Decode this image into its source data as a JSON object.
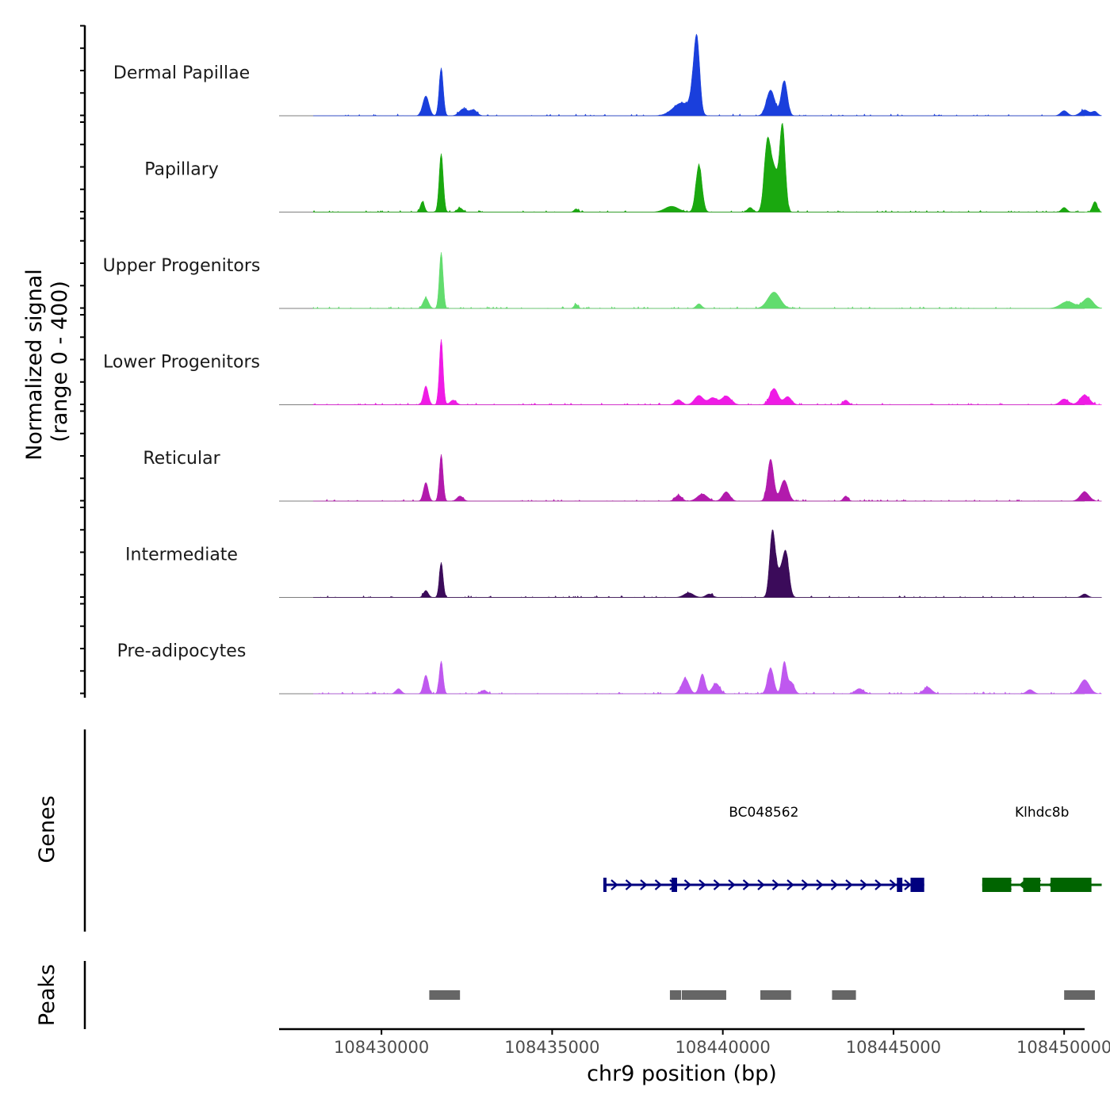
{
  "chart_data": {
    "type": "area",
    "chromosome": "chr9",
    "xlim": [
      108427000,
      108450600
    ],
    "ylim": [
      0,
      400
    ],
    "y_title_line1": "Normalized signal",
    "y_title_line2": "(range 0 - 400)",
    "xlabel": "chr9 position (bp)",
    "x_ticks": [
      108430000,
      108435000,
      108440000,
      108445000,
      108450000
    ],
    "x_tick_labels": [
      "108430000",
      "108435000",
      "108440000",
      "108445000",
      "108450000"
    ],
    "signal_start": 108428000,
    "signal_end": 108451100,
    "tracks": [
      {
        "name": "Dermal Papillae",
        "color": "#1a3fdc",
        "peaks": [
          {
            "pos": 108431300,
            "h": 85,
            "w": 90
          },
          {
            "pos": 108431750,
            "h": 205,
            "w": 60
          },
          {
            "pos": 108432400,
            "h": 30,
            "w": 120
          },
          {
            "pos": 108432700,
            "h": 25,
            "w": 100
          },
          {
            "pos": 108438800,
            "h": 55,
            "w": 260
          },
          {
            "pos": 108439250,
            "h": 270,
            "w": 80
          },
          {
            "pos": 108439150,
            "h": 110,
            "w": 90
          },
          {
            "pos": 108441400,
            "h": 110,
            "w": 120
          },
          {
            "pos": 108441800,
            "h": 150,
            "w": 90
          },
          {
            "pos": 108450000,
            "h": 22,
            "w": 100
          },
          {
            "pos": 108450600,
            "h": 25,
            "w": 130
          },
          {
            "pos": 108450900,
            "h": 18,
            "w": 80
          }
        ]
      },
      {
        "name": "Papillary",
        "color": "#1aa80f",
        "peaks": [
          {
            "pos": 108431200,
            "h": 45,
            "w": 60
          },
          {
            "pos": 108431750,
            "h": 250,
            "w": 60
          },
          {
            "pos": 108432300,
            "h": 18,
            "w": 80
          },
          {
            "pos": 108435700,
            "h": 14,
            "w": 60
          },
          {
            "pos": 108438500,
            "h": 25,
            "w": 200
          },
          {
            "pos": 108439300,
            "h": 200,
            "w": 90
          },
          {
            "pos": 108441300,
            "h": 270,
            "w": 90
          },
          {
            "pos": 108441750,
            "h": 360,
            "w": 80
          },
          {
            "pos": 108441500,
            "h": 180,
            "w": 120
          },
          {
            "pos": 108440800,
            "h": 20,
            "w": 80
          },
          {
            "pos": 108450000,
            "h": 20,
            "w": 80
          },
          {
            "pos": 108450900,
            "h": 45,
            "w": 70
          }
        ]
      },
      {
        "name": "Upper Progenitors",
        "color": "#62dc6e",
        "peaks": [
          {
            "pos": 108431300,
            "h": 45,
            "w": 80
          },
          {
            "pos": 108431750,
            "h": 240,
            "w": 55
          },
          {
            "pos": 108435700,
            "h": 18,
            "w": 60
          },
          {
            "pos": 108439300,
            "h": 20,
            "w": 80
          },
          {
            "pos": 108441500,
            "h": 70,
            "w": 180
          },
          {
            "pos": 108450100,
            "h": 30,
            "w": 200
          },
          {
            "pos": 108450700,
            "h": 45,
            "w": 150
          }
        ]
      },
      {
        "name": "Lower Progenitors",
        "color": "#ef1be5",
        "peaks": [
          {
            "pos": 108431300,
            "h": 80,
            "w": 70
          },
          {
            "pos": 108431750,
            "h": 280,
            "w": 55
          },
          {
            "pos": 108432100,
            "h": 20,
            "w": 90
          },
          {
            "pos": 108438700,
            "h": 22,
            "w": 100
          },
          {
            "pos": 108439300,
            "h": 40,
            "w": 130
          },
          {
            "pos": 108439700,
            "h": 30,
            "w": 120
          },
          {
            "pos": 108440100,
            "h": 38,
            "w": 140
          },
          {
            "pos": 108441500,
            "h": 70,
            "w": 120
          },
          {
            "pos": 108441900,
            "h": 35,
            "w": 110
          },
          {
            "pos": 108443600,
            "h": 20,
            "w": 80
          },
          {
            "pos": 108450000,
            "h": 25,
            "w": 120
          },
          {
            "pos": 108450600,
            "h": 42,
            "w": 140
          }
        ]
      },
      {
        "name": "Reticular",
        "color": "#b21aac",
        "peaks": [
          {
            "pos": 108431300,
            "h": 80,
            "w": 70
          },
          {
            "pos": 108431750,
            "h": 200,
            "w": 55
          },
          {
            "pos": 108432300,
            "h": 22,
            "w": 90
          },
          {
            "pos": 108438700,
            "h": 25,
            "w": 100
          },
          {
            "pos": 108439400,
            "h": 30,
            "w": 150
          },
          {
            "pos": 108440100,
            "h": 40,
            "w": 110
          },
          {
            "pos": 108441400,
            "h": 180,
            "w": 90
          },
          {
            "pos": 108441800,
            "h": 90,
            "w": 110
          },
          {
            "pos": 108443600,
            "h": 22,
            "w": 70
          },
          {
            "pos": 108450600,
            "h": 40,
            "w": 130
          }
        ]
      },
      {
        "name": "Intermediate",
        "color": "#3b0b5a",
        "peaks": [
          {
            "pos": 108431300,
            "h": 30,
            "w": 70
          },
          {
            "pos": 108431750,
            "h": 150,
            "w": 55
          },
          {
            "pos": 108439000,
            "h": 20,
            "w": 140
          },
          {
            "pos": 108439600,
            "h": 15,
            "w": 100
          },
          {
            "pos": 108441450,
            "h": 265,
            "w": 80
          },
          {
            "pos": 108441850,
            "h": 175,
            "w": 90
          },
          {
            "pos": 108441650,
            "h": 100,
            "w": 120
          },
          {
            "pos": 108450600,
            "h": 15,
            "w": 90
          }
        ]
      },
      {
        "name": "Pre-adipocytes",
        "color": "#bf58ef",
        "peaks": [
          {
            "pos": 108430500,
            "h": 22,
            "w": 80
          },
          {
            "pos": 108431300,
            "h": 80,
            "w": 70
          },
          {
            "pos": 108431750,
            "h": 140,
            "w": 55
          },
          {
            "pos": 108433000,
            "h": 15,
            "w": 90
          },
          {
            "pos": 108438900,
            "h": 65,
            "w": 110
          },
          {
            "pos": 108439400,
            "h": 85,
            "w": 80
          },
          {
            "pos": 108439800,
            "h": 45,
            "w": 110
          },
          {
            "pos": 108441400,
            "h": 110,
            "w": 90
          },
          {
            "pos": 108441800,
            "h": 135,
            "w": 70
          },
          {
            "pos": 108442000,
            "h": 50,
            "w": 90
          },
          {
            "pos": 108444000,
            "h": 22,
            "w": 120
          },
          {
            "pos": 108446000,
            "h": 28,
            "w": 120
          },
          {
            "pos": 108449000,
            "h": 18,
            "w": 100
          },
          {
            "pos": 108450600,
            "h": 60,
            "w": 140
          }
        ]
      }
    ],
    "genes_title": "Genes",
    "genes": [
      {
        "name": "BC048562",
        "start": 108436500,
        "end": 108445900,
        "strand": "+",
        "color": "#00007f",
        "exons": [
          [
            108436500,
            108436580
          ],
          [
            108438500,
            108438660
          ],
          [
            108445100,
            108445260
          ],
          [
            108445500,
            108445900
          ]
        ]
      },
      {
        "name": "Klhdc8b",
        "start": 108447600,
        "end": 108451100,
        "strand": "-",
        "color": "#006400",
        "exons": [
          [
            108447600,
            108448450
          ],
          [
            108448800,
            108449300
          ],
          [
            108449600,
            108450800
          ]
        ]
      }
    ],
    "peaks_title": "Peaks",
    "peak_regions": [
      [
        108431400,
        108432300
      ],
      [
        108438450,
        108438780
      ],
      [
        108438800,
        108440100
      ],
      [
        108441100,
        108442000
      ],
      [
        108443200,
        108443900
      ],
      [
        108450000,
        108450900
      ]
    ]
  }
}
